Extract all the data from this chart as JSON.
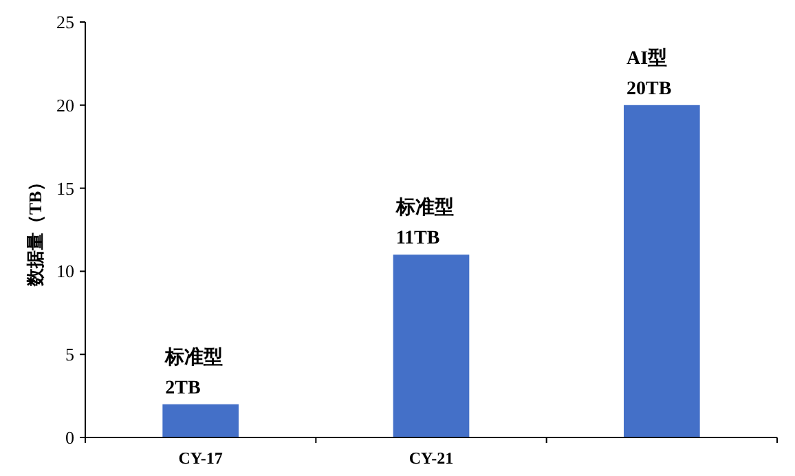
{
  "chart_data": {
    "type": "bar",
    "ylabel": "数据量（TB）",
    "categories": [
      "CY-17",
      "CY-21",
      null
    ],
    "values": [
      2,
      11,
      20
    ],
    "color": "#4470c8",
    "value_labels": [
      "标准型\n2TB",
      "标准型\n11TB",
      "AI型\n20TB"
    ],
    "ylim": [
      0,
      25
    ],
    "yticks": [
      0,
      5,
      10,
      15,
      20,
      25
    ],
    "grid": false
  }
}
